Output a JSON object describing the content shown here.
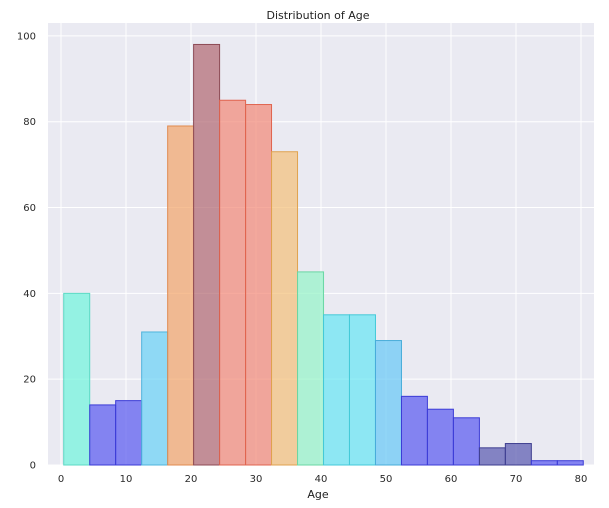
{
  "chart_data": {
    "type": "bar",
    "title": "Distribution of Age",
    "xlabel": "Age",
    "ylabel": "",
    "xlim": [
      -2,
      82
    ],
    "ylim": [
      0,
      103
    ],
    "xticks": [
      0,
      10,
      20,
      30,
      40,
      50,
      60,
      70,
      80
    ],
    "yticks": [
      0,
      20,
      40,
      60,
      80,
      100
    ],
    "bin_edges": [
      0.42,
      4.42,
      8.41,
      12.41,
      16.41,
      20.4,
      24.4,
      28.4,
      32.39,
      36.39,
      40.39,
      44.38,
      48.38,
      52.38,
      56.37,
      60.37,
      64.37,
      68.36,
      72.36,
      76.36,
      80.35
    ],
    "values": [
      40,
      14,
      15,
      31,
      79,
      98,
      85,
      84,
      73,
      45,
      35,
      35,
      29,
      16,
      13,
      11,
      4,
      5,
      1,
      1
    ],
    "bar_colors": [
      "#73f5dc",
      "#5b5cf0",
      "#5b5cf0",
      "#6cd2f5",
      "#f2a66c",
      "#b36b73",
      "#f28b78",
      "#f28b78",
      "#f4c17b",
      "#96f4c7",
      "#69e6f2",
      "#69e6f2",
      "#69c9f5",
      "#5b5cf0",
      "#5b5cf0",
      "#5b5cf0",
      "#5b5cb0",
      "#5b5cb0",
      "#5b5cf0",
      "#5b5cf0"
    ],
    "bar_edge_colors": [
      "#5cd9c4",
      "#3b3bd6",
      "#3b3bd6",
      "#4fb4dc",
      "#e08a4f",
      "#8d4b55",
      "#e0644f",
      "#e0644f",
      "#e0a24f",
      "#6ad7a4",
      "#43c9d8",
      "#43c9d8",
      "#47acd9",
      "#3b3bd6",
      "#3b3bd6",
      "#3b3bd6",
      "#3d3d8f",
      "#3d3d8f",
      "#3b3bd6",
      "#3b3bd6"
    ],
    "bar_opacity": 0.72,
    "grid": true,
    "legend": "none"
  }
}
